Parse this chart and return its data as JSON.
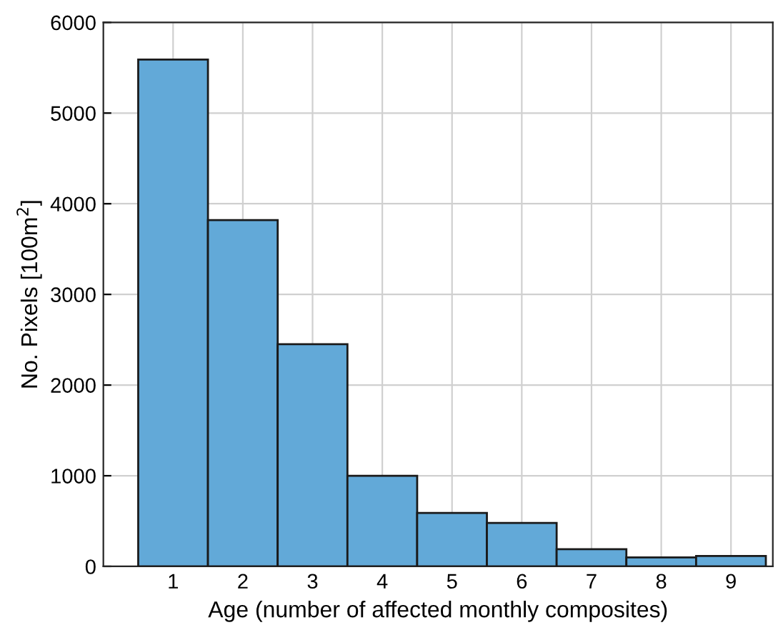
{
  "chart_data": {
    "type": "histogram",
    "xlabel": "Age (number of affected monthly composites)",
    "ylabel": "No. Pixels [100m$^{2}$]",
    "bins": [
      0.5,
      1.5,
      2.5,
      3.5,
      4.5,
      5.5,
      6.5,
      7.5,
      8.5,
      9.5
    ],
    "values": [
      5590,
      3820,
      2450,
      1000,
      590,
      480,
      190,
      100,
      115
    ],
    "color": "#62a9d8",
    "xlim": [
      0,
      9.6
    ],
    "xticks": [
      1,
      2,
      3,
      4,
      5,
      6,
      7,
      8,
      9
    ],
    "ylim": [
      0,
      6000
    ],
    "yticks": [
      0,
      1000,
      2000,
      3000,
      4000,
      5000,
      6000
    ],
    "grid": true
  }
}
